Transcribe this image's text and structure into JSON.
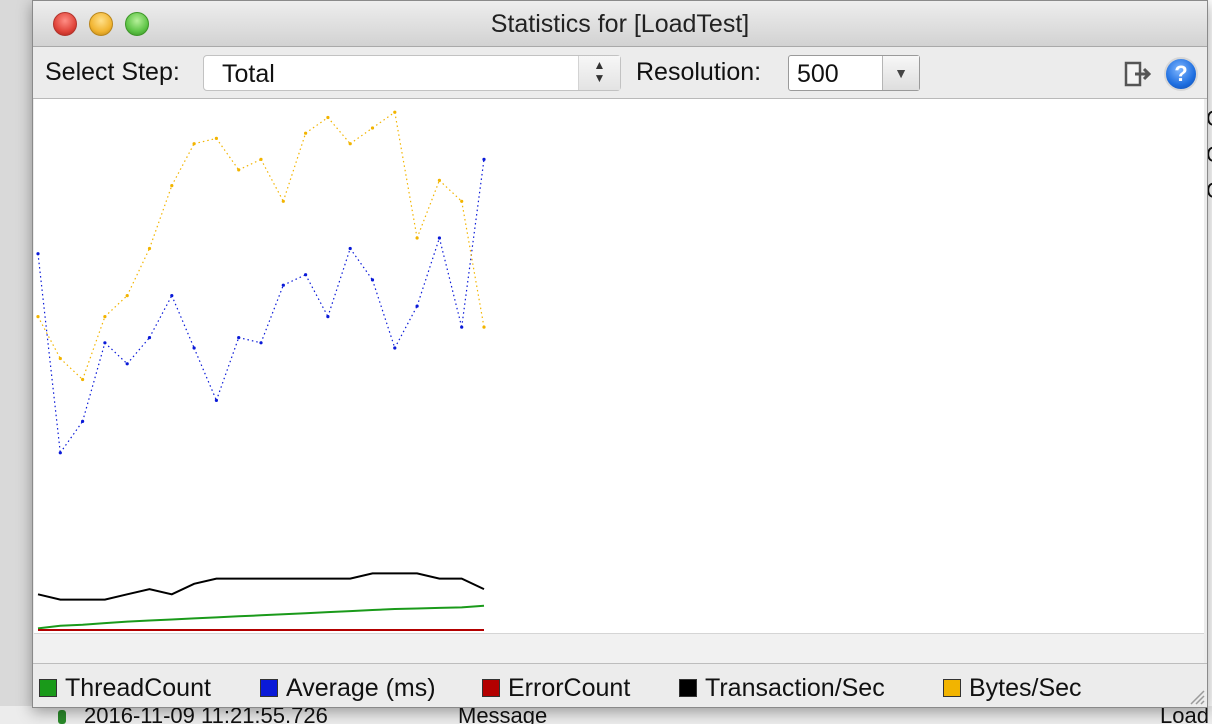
{
  "window": {
    "title": "Statistics for [LoadTest]"
  },
  "toolbar": {
    "select_step_label": "Select Step:",
    "select_step_value": "Total",
    "resolution_label": "Resolution:",
    "resolution_value": "500"
  },
  "background": {
    "log_timestamp": "2016-11-09 11:21:55.726",
    "log_message": "Message",
    "log_right": "Load",
    "right_chars": [
      "C",
      "C",
      "C"
    ]
  },
  "colors": {
    "thread_count": "#1a9a1a",
    "average": "#0a1ad8",
    "error_count": "#b30000",
    "transaction_sec": "#000000",
    "bytes_sec": "#f2b400"
  },
  "chart_data": {
    "type": "line",
    "title": "",
    "xlabel": "",
    "ylabel": "",
    "grid": false,
    "legend_position": "bottom",
    "x": [
      0,
      5,
      10,
      15,
      20,
      25,
      30,
      35,
      40,
      45,
      50,
      55,
      60,
      65,
      70,
      75,
      80,
      85,
      90,
      95,
      100
    ],
    "ylim": [
      0,
      100
    ],
    "series": [
      {
        "name": "ThreadCount",
        "color": "#1a9a1a",
        "style": "line",
        "values": [
          0.5,
          1.0,
          1.2,
          1.5,
          1.8,
          2.0,
          2.2,
          2.4,
          2.6,
          2.8,
          3.0,
          3.2,
          3.4,
          3.6,
          3.8,
          4.0,
          4.2,
          4.3,
          4.4,
          4.5,
          4.8
        ]
      },
      {
        "name": "Average (ms)",
        "color": "#0a1ad8",
        "style": "dots",
        "values": [
          72,
          34,
          40,
          55,
          51,
          56,
          64,
          54,
          44,
          56,
          55,
          66,
          68,
          60,
          73,
          67,
          54,
          62,
          75,
          58,
          90
        ]
      },
      {
        "name": "ErrorCount",
        "color": "#b30000",
        "style": "line",
        "values": [
          0.2,
          0.2,
          0.2,
          0.2,
          0.2,
          0.2,
          0.2,
          0.2,
          0.2,
          0.2,
          0.2,
          0.2,
          0.2,
          0.2,
          0.2,
          0.2,
          0.2,
          0.2,
          0.2,
          0.2,
          0.2
        ]
      },
      {
        "name": "Transaction/Sec",
        "color": "#000000",
        "style": "line",
        "values": [
          7,
          6,
          6,
          6,
          7,
          8,
          7,
          9,
          10,
          10,
          10,
          10,
          10,
          10,
          10,
          11,
          11,
          11,
          10,
          10,
          8
        ]
      },
      {
        "name": "Bytes/Sec",
        "color": "#f2b400",
        "style": "dots",
        "values": [
          60,
          52,
          48,
          60,
          64,
          73,
          85,
          93,
          94,
          88,
          90,
          82,
          95,
          98,
          93,
          96,
          99,
          75,
          86,
          82,
          58
        ]
      }
    ]
  },
  "legend": [
    {
      "label": "ThreadCount",
      "color": "#1a9a1a"
    },
    {
      "label": "Average (ms)",
      "color": "#0a1ad8"
    },
    {
      "label": "ErrorCount",
      "color": "#b30000"
    },
    {
      "label": "Transaction/Sec",
      "color": "#000000"
    },
    {
      "label": "Bytes/Sec",
      "color": "#f2b400"
    }
  ]
}
